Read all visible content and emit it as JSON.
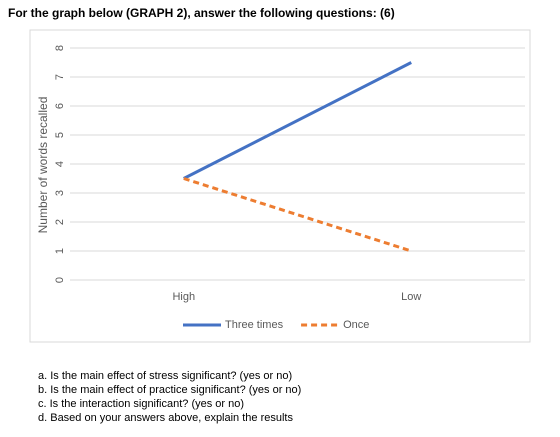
{
  "heading": "For the graph below (GRAPH 2), answer the following questions: (6)",
  "chart_data": {
    "type": "line",
    "y_label": "Number of words recalled",
    "categories": [
      "High",
      "Low"
    ],
    "series": [
      {
        "name": "Three times",
        "color": "#4472c4",
        "dashed": false,
        "values": [
          3.5,
          7.5
        ]
      },
      {
        "name": "Once",
        "color": "#ed7d31",
        "dashed": true,
        "values": [
          3.5,
          1.0
        ]
      }
    ],
    "ylim": [
      0,
      8
    ],
    "yticks": [
      0,
      1,
      2,
      3,
      4,
      5,
      6,
      7,
      8
    ],
    "grid": true,
    "legend": "bottom"
  },
  "questions": [
    "a. Is the main effect of stress significant? (yes or no)",
    "b. Is the main effect of practice significant? (yes or no)",
    "c. Is the interaction significant? (yes or no)",
    "d. Based on your answers above, explain the results"
  ]
}
